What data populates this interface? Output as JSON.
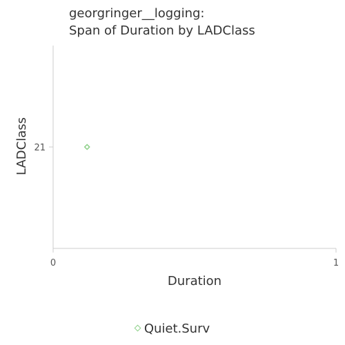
{
  "chart_data": {
    "type": "scatter",
    "title_line1": "georgringer__logging:",
    "title_line2": "Span of Duration by LADClass",
    "xlabel": "Duration",
    "ylabel": "LADClass",
    "xlim": [
      0,
      1
    ],
    "x_ticks": [
      "0",
      "1"
    ],
    "y_categories": [
      "21"
    ],
    "grid": false,
    "legend_position": "bottom",
    "series": [
      {
        "name": "Quiet.Surv",
        "color": "#8dd088",
        "marker": "diamond",
        "points": [
          {
            "x": 0.12,
            "y": "21"
          }
        ]
      }
    ]
  }
}
